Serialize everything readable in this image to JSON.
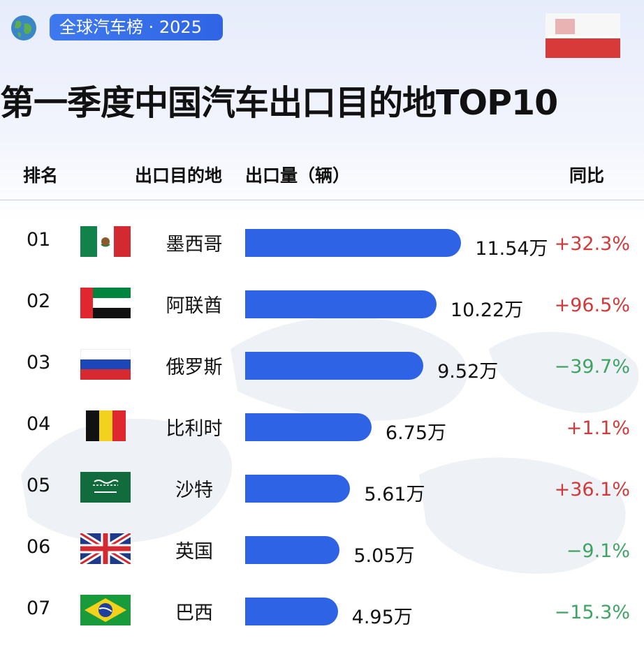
{
  "header": {
    "brand_label": "全球汽车榜 · 2025",
    "title": "第一季度中国汽车出口目的地TOP10"
  },
  "columns": {
    "rank": "排名",
    "destination": "出口目的地",
    "volume": "出口量（辆）",
    "yoy": "同比"
  },
  "colors": {
    "bar": "#2f63e6",
    "up": "#d23a3a",
    "down": "#3fa463",
    "brand": "#3f79ee"
  },
  "chart_data": {
    "type": "bar",
    "title": "第一季度中国汽车出口目的地TOP10",
    "ylabel": "出口量（辆）",
    "unit": "万",
    "categories": [
      "墨西哥",
      "阿联酋",
      "俄罗斯",
      "比利时",
      "沙特",
      "英国",
      "巴西"
    ],
    "values": [
      11.54,
      10.22,
      9.52,
      6.75,
      5.61,
      5.05,
      4.95
    ],
    "rows": [
      {
        "rank": "01",
        "country": "墨西哥",
        "value": 11.54,
        "value_label": "11.54万",
        "yoy": "+32.3%",
        "flag": "mexico-flag-icon"
      },
      {
        "rank": "02",
        "country": "阿联酋",
        "value": 10.22,
        "value_label": "10.22万",
        "yoy": "+96.5%",
        "flag": "uae-flag-icon"
      },
      {
        "rank": "03",
        "country": "俄罗斯",
        "value": 9.52,
        "value_label": "9.52万",
        "yoy": "−39.7%",
        "flag": "russia-flag-icon"
      },
      {
        "rank": "04",
        "country": "比利时",
        "value": 6.75,
        "value_label": "6.75万",
        "yoy": "+1.1%",
        "flag": "belgium-flag-icon"
      },
      {
        "rank": "05",
        "country": "沙特",
        "value": 5.61,
        "value_label": "5.61万",
        "yoy": "+36.1%",
        "flag": "saudi-flag-icon"
      },
      {
        "rank": "06",
        "country": "英国",
        "value": 5.05,
        "value_label": "5.05万",
        "yoy": "−9.1%",
        "flag": "uk-flag-icon"
      },
      {
        "rank": "07",
        "country": "巴西",
        "value": 4.95,
        "value_label": "4.95万",
        "yoy": "−15.3%",
        "flag": "brazil-flag-icon"
      }
    ]
  }
}
